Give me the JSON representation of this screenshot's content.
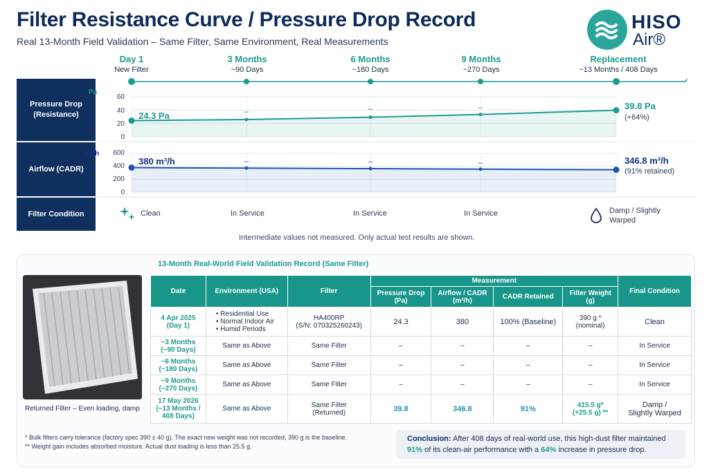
{
  "header": {
    "title": "Filter Resistance Curve / Pressure Drop Record",
    "subtitle": "Real 13-Month Field Validation – Same Filter, Same Environment, Real Measurements"
  },
  "logo": {
    "line1": "HISO",
    "line2": "Air®"
  },
  "timeline": [
    {
      "label": "Day 1",
      "sub": "New Filter"
    },
    {
      "label": "3 Months",
      "sub": "~90 Days"
    },
    {
      "label": "6 Months",
      "sub": "~180 Days"
    },
    {
      "label": "9 Months",
      "sub": "~270 Days"
    },
    {
      "label": "Replacement",
      "sub": "~13 Months / 408 Days"
    }
  ],
  "rows": {
    "pressure_label": "Pressure Drop (Resistance)",
    "airflow_label": "Airflow (CADR)",
    "condition_label": "Filter Condition"
  },
  "chart_data": [
    {
      "type": "line",
      "title": "",
      "ylabel": "Pa",
      "ylim": [
        0,
        60
      ],
      "yticks": [
        "60",
        "40",
        "20",
        "0"
      ],
      "x": [
        "Day 1",
        "3 Months",
        "6 Months",
        "9 Months",
        "Replacement"
      ],
      "series": [
        {
          "values": [
            24.3,
            null,
            null,
            null,
            39.8
          ]
        }
      ],
      "start_label": "24.3 Pa",
      "end_label": "39.8 Pa",
      "end_sub": "(+64%)",
      "missing_marker": "–",
      "color": "#1d9b8e"
    },
    {
      "type": "line",
      "title": "",
      "ylabel": "m³/h",
      "ylim": [
        0,
        600
      ],
      "yticks": [
        "600",
        "400",
        "200",
        "0"
      ],
      "x": [
        "Day 1",
        "3 Months",
        "6 Months",
        "9 Months",
        "Replacement"
      ],
      "series": [
        {
          "values": [
            380,
            null,
            null,
            null,
            346.8
          ]
        }
      ],
      "start_label": "380 m³/h",
      "end_label": "346.8 m³/h",
      "end_sub": "(91% retained)",
      "missing_marker": "–",
      "color": "#1b56b0"
    }
  ],
  "conditions": [
    "Clean",
    "In Service",
    "In Service",
    "In Service",
    "Damp / Slightly Warped"
  ],
  "legend_note": "Intermediate values not measured. Only actual test results are shown.",
  "record": {
    "title": "13-Month Real-World Field Validation Record (Same Filter)",
    "photo_caption": "Returned Filter – Even loading, damp",
    "headers": {
      "date": "Date",
      "environment": "Environment (USA)",
      "filter": "Filter",
      "measurement": "Measurement",
      "pressure": "Pressure Drop (Pa)",
      "airflow": "Airflow / CADR (m³/h)",
      "cadr": "CADR Retained",
      "weight": "Filter Weight (g)",
      "final": "Final Condition"
    },
    "row1": {
      "date": "4 Apr 2025",
      "date_sub": "(Day 1)",
      "env": [
        "Residential Use",
        "Normal Indoor Air",
        "Humid Periods"
      ],
      "filter": "HA400RP",
      "filter_sub": "(S/N: 070325260243)",
      "pressure": "24.3",
      "airflow": "380",
      "cadr": "100% (Baseline)",
      "weight": "390 g *",
      "weight_sub": "(nominal)",
      "final": "Clean"
    },
    "mid_rows": [
      {
        "date": "~3 Months",
        "date_sub": "(~90 Days)",
        "env": "Same as Above",
        "filter": "Same Filter",
        "pressure": "–",
        "airflow": "–",
        "cadr": "–",
        "weight": "–",
        "final": "In Service"
      },
      {
        "date": "~6 Months",
        "date_sub": "(~180 Days)",
        "env": "Same as Above",
        "filter": "Same Filter",
        "pressure": "–",
        "airflow": "–",
        "cadr": "–",
        "weight": "–",
        "final": "In Service"
      },
      {
        "date": "~9 Months",
        "date_sub": "(~270 Days)",
        "env": "Same as Above",
        "filter": "Same Filter",
        "pressure": "–",
        "airflow": "–",
        "cadr": "–",
        "weight": "–",
        "final": "In Service"
      }
    ],
    "last_row": {
      "date": "17 May 2026",
      "date_sub": "(~13 Months /",
      "date_sub2": "408 Days)",
      "env": "Same as Above",
      "filter": "Same Filter",
      "filter_sub": "(Returned)",
      "pressure": "39.8",
      "airflow": "346.8",
      "cadr": "91%",
      "weight": "415.5 g*",
      "weight_sub": "(+25.5 g) **",
      "final": "Damp /",
      "final_sub": "Slightly Warped"
    }
  },
  "footnotes": [
    "* Bulk filters carry tolerance (factory spec 390 ± 40 g). The exact new weight was not recorded, 390 g is the baseline.",
    "** Weight gain includes absorbed moisture. Actual dust loading is less than 25.5 g."
  ],
  "conclusion": {
    "label": "Conclusion:",
    "text1": "After 408 days of real-world use, this high-dust filter maintained",
    "pct1": "91%",
    "text2": "of its clean-air performance with a",
    "pct2": "64%",
    "text3": "increase in pressure drop."
  }
}
